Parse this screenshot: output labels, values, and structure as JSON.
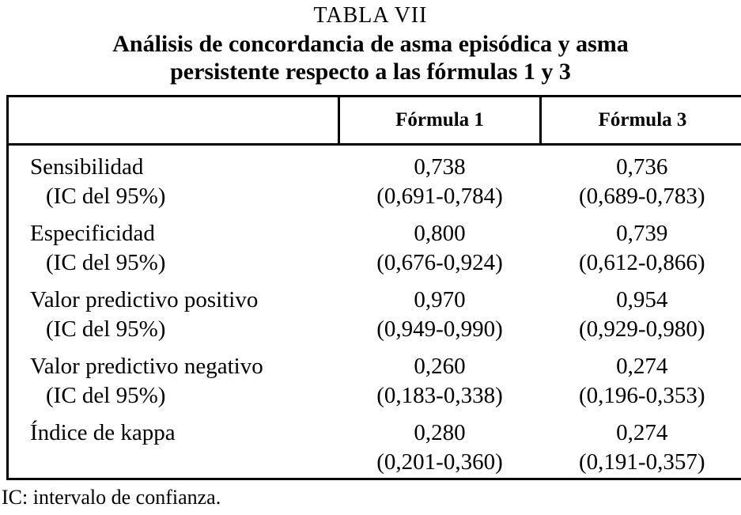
{
  "page": {
    "table_label": "TABLA VII",
    "title_line1": "Análisis de concordancia de asma episódica y asma",
    "title_line2": "persistente respecto a las fórmulas 1 y 3",
    "footnote": "IC: intervalo de confianza."
  },
  "table": {
    "header": {
      "col1": "",
      "col2": "Fórmula 1",
      "col3": "Fórmula 3"
    },
    "rows": [
      {
        "label": "Sensibilidad",
        "ci_label": "(IC del 95%)",
        "f1": "0,738",
        "f1_ci": "(0,691-0,784)",
        "f3": "0,736",
        "f3_ci": "(0,689-0,783)"
      },
      {
        "label": "Especificidad",
        "ci_label": "(IC del 95%)",
        "f1": "0,800",
        "f1_ci": "(0,676-0,924)",
        "f3": "0,739",
        "f3_ci": "(0,612-0,866)"
      },
      {
        "label": "Valor predictivo positivo",
        "ci_label": "(IC del 95%)",
        "f1": "0,970",
        "f1_ci": "(0,949-0,990)",
        "f3": "0,954",
        "f3_ci": "(0,929-0,980)"
      },
      {
        "label": "Valor predictivo negativo",
        "ci_label": "(IC del 95%)",
        "f1": "0,260",
        "f1_ci": "(0,183-0,338)",
        "f3": "0,274",
        "f3_ci": "(0,196-0,353)"
      },
      {
        "label": "Índice de kappa",
        "ci_label": "",
        "f1": "0,280",
        "f1_ci": "(0,201-0,360)",
        "f3": "0,274",
        "f3_ci": "(0,191-0,357)"
      }
    ]
  }
}
